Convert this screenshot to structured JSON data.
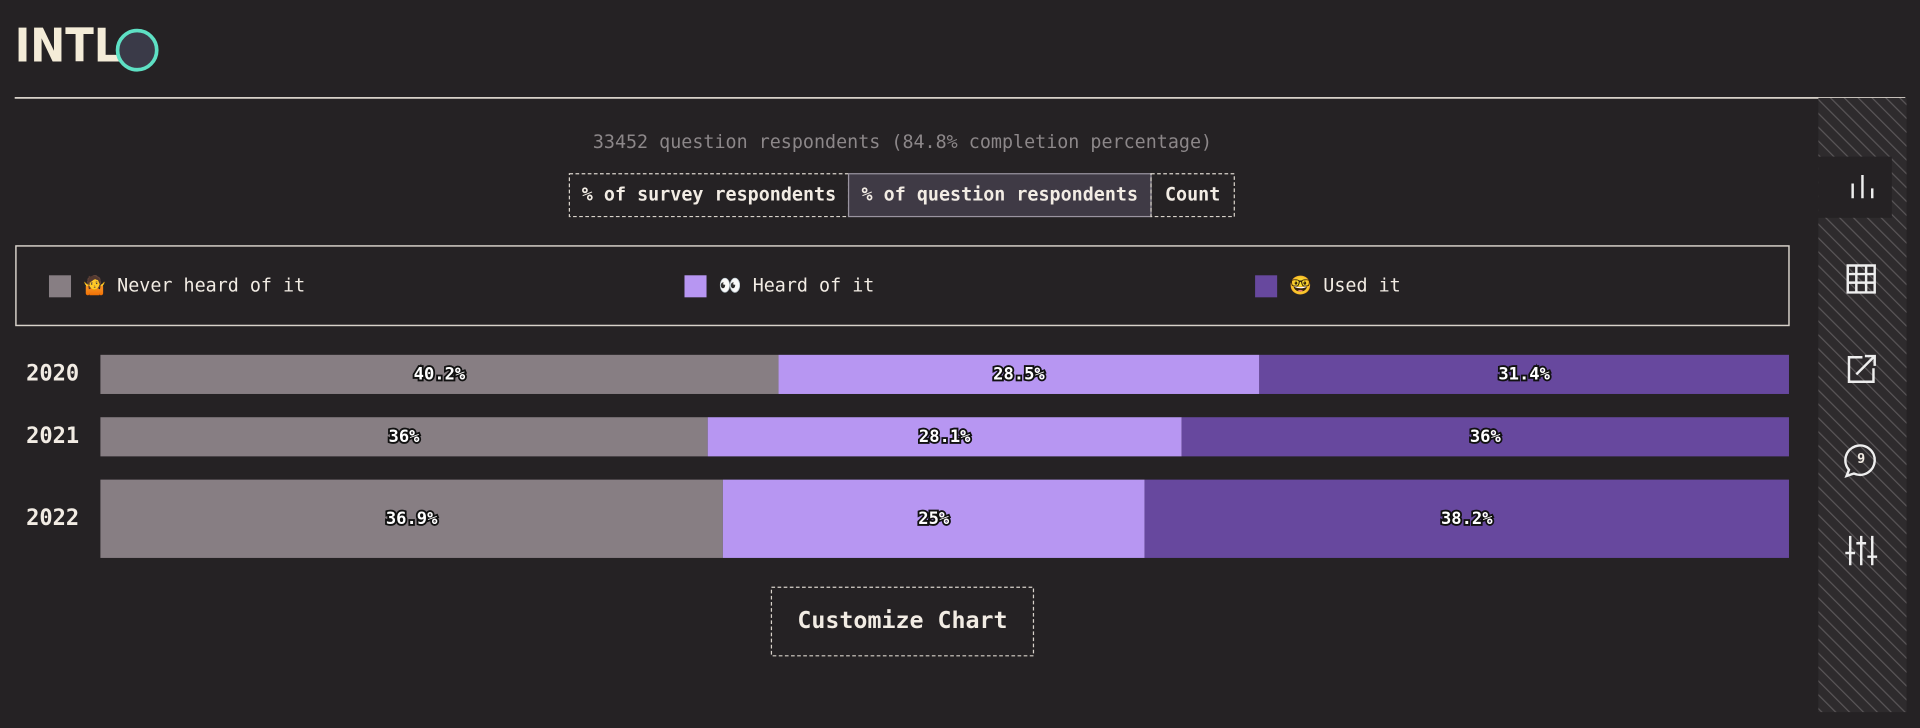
{
  "header": {
    "title": "INTL"
  },
  "subtitle": "33452 question respondents (84.8% completion percentage)",
  "tabs": [
    "% of survey respondents",
    "% of question respondents",
    "Count"
  ],
  "active_tab": 1,
  "customize_button": "Customize Chart",
  "sidebar": {
    "comment_count": 9
  },
  "chart_data": {
    "type": "stacked_bar_horizontal",
    "categories": [
      "2020",
      "2021",
      "2022"
    ],
    "series": [
      {
        "name": "🤷 Never heard of it",
        "color": "#877e83",
        "values": [
          40.2,
          36,
          36.9
        ],
        "value_labels": [
          "40.2%",
          "36%",
          "36.9%"
        ]
      },
      {
        "name": "👀 Heard of it",
        "color": "#b796f2",
        "values": [
          28.5,
          28.1,
          25
        ],
        "value_labels": [
          "28.5%",
          "28.1%",
          "25%"
        ]
      },
      {
        "name": "🤓 Used it",
        "color": "#67489e",
        "values": [
          31.4,
          36,
          38.2
        ],
        "value_labels": [
          "31.4%",
          "36%",
          "38.2%"
        ]
      }
    ],
    "legend": "top"
  }
}
